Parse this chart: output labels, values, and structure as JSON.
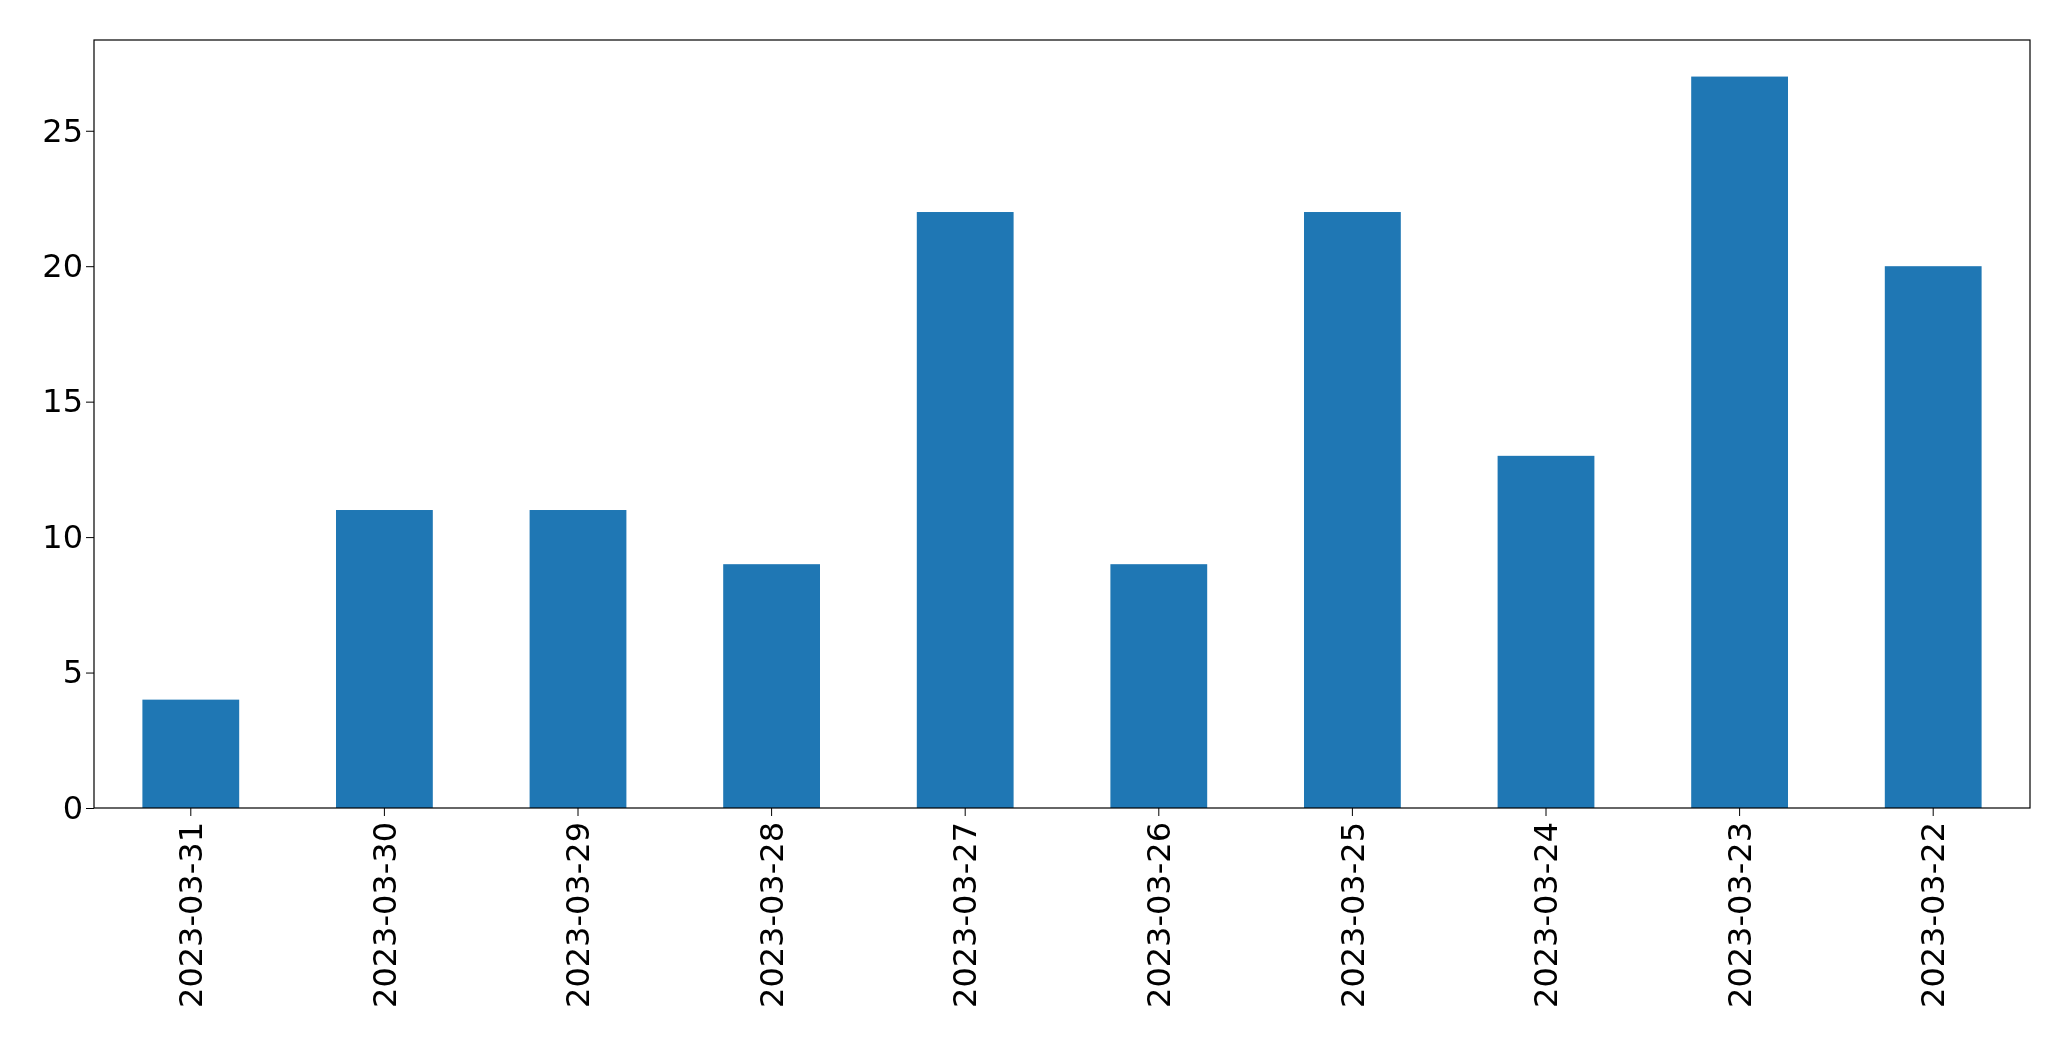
{
  "chart_data": {
    "type": "bar",
    "categories": [
      "2023-03-31",
      "2023-03-30",
      "2023-03-29",
      "2023-03-28",
      "2023-03-27",
      "2023-03-26",
      "2023-03-25",
      "2023-03-24",
      "2023-03-23",
      "2023-03-22"
    ],
    "values": [
      4,
      11,
      11,
      9,
      22,
      9,
      22,
      13,
      27,
      20
    ],
    "color": "#1f77b4",
    "ylim": [
      0,
      28.35
    ],
    "yticks": [
      0,
      5,
      10,
      15,
      20,
      25
    ]
  }
}
